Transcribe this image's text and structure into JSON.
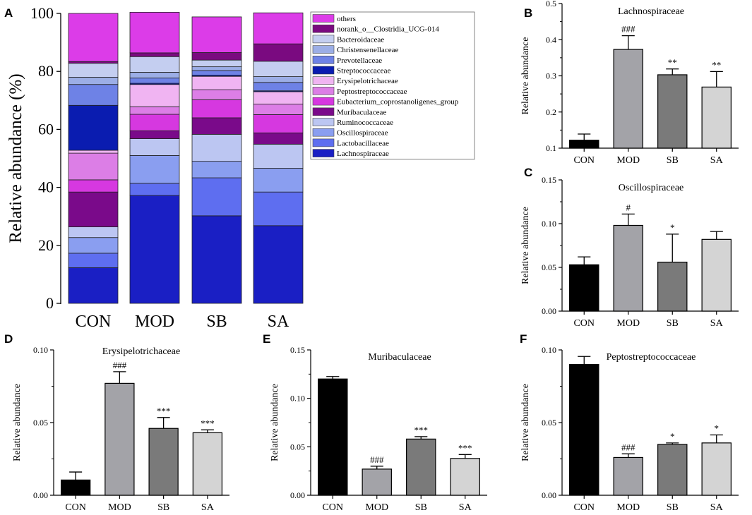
{
  "figure": {
    "panel_labels": [
      "A",
      "B",
      "C",
      "D",
      "E",
      "F"
    ]
  },
  "chart_data": [
    {
      "panel": "A",
      "type": "stacked-bar",
      "title": "",
      "xlabel": "",
      "ylabel": "Relative abundance (%)",
      "ylim": [
        0,
        100
      ],
      "yticks": [
        0,
        20,
        40,
        60,
        80,
        100
      ],
      "categories": [
        "CON",
        "MOD",
        "SB",
        "SA"
      ],
      "legend_position": "right",
      "series": [
        {
          "name": "Lachnospiraceae",
          "color": "#1a1fc4",
          "values": [
            12.3,
            37.2,
            30.2,
            26.8
          ]
        },
        {
          "name": "Lactobacillaceae",
          "color": "#5e6ef0",
          "values": [
            5.0,
            4.2,
            13.1,
            11.6
          ]
        },
        {
          "name": "Oscillospiraceae",
          "color": "#8a9ef0",
          "values": [
            5.4,
            9.6,
            5.7,
            8.2
          ]
        },
        {
          "name": "Ruminococcaceae",
          "color": "#bcc6f2",
          "values": [
            3.7,
            5.8,
            9.3,
            8.3
          ]
        },
        {
          "name": "Muribaculaceae",
          "color": "#7a0a8a",
          "values": [
            12.0,
            2.7,
            5.7,
            3.9
          ]
        },
        {
          "name": "Eubacterium_coprostanoligenes_group",
          "color": "#d638e0",
          "values": [
            4.2,
            5.7,
            6.2,
            6.3
          ]
        },
        {
          "name": "Peptostreptococcaceae",
          "color": "#dc7ee6",
          "values": [
            9.2,
            2.6,
            3.5,
            3.6
          ]
        },
        {
          "name": "Erysipelotrichaceae",
          "color": "#f0b4f2",
          "values": [
            1.0,
            7.7,
            4.6,
            4.3
          ]
        },
        {
          "name": "Streptococcaceae",
          "color": "#0a1cb0",
          "values": [
            15.5,
            0.4,
            0.4,
            0.3
          ]
        },
        {
          "name": "Prevotellaceae",
          "color": "#6e82e6",
          "values": [
            7.2,
            1.8,
            1.6,
            2.9
          ]
        },
        {
          "name": "Christensenellaceae",
          "color": "#9caee6",
          "values": [
            2.5,
            2.0,
            1.3,
            2.0
          ]
        },
        {
          "name": "Bacteroidaceae",
          "color": "#c4cef0",
          "values": [
            4.8,
            5.4,
            2.3,
            5.3
          ]
        },
        {
          "name": "norank_o__Clostridia_UCG-014",
          "color": "#7a0a80",
          "values": [
            0.6,
            1.3,
            2.6,
            6.0
          ]
        },
        {
          "name": "others",
          "color": "#dc3ce8",
          "values": [
            16.6,
            14.0,
            12.3,
            10.7
          ]
        }
      ]
    },
    {
      "panel": "B",
      "type": "bar",
      "title": "Lachnospiraceae",
      "xlabel": "",
      "ylabel": "Relative abundance",
      "categories": [
        "CON",
        "MOD",
        "SB",
        "SA"
      ],
      "values": [
        0.122,
        0.373,
        0.303,
        0.269
      ],
      "errors": [
        0.017,
        0.038,
        0.016,
        0.043
      ],
      "annotations": [
        "",
        "###",
        "**",
        "**"
      ],
      "ylim": [
        0.1,
        0.5
      ],
      "yticks": [
        "0.1",
        "0.2",
        "0.3",
        "0.4",
        "0.5"
      ]
    },
    {
      "panel": "C",
      "type": "bar",
      "title": "Oscillospiraceae",
      "xlabel": "",
      "ylabel": "Relative abundance",
      "categories": [
        "CON",
        "MOD",
        "SB",
        "SA"
      ],
      "values": [
        0.053,
        0.098,
        0.056,
        0.082
      ],
      "errors": [
        0.009,
        0.013,
        0.032,
        0.009
      ],
      "annotations": [
        "",
        "#",
        "*",
        ""
      ],
      "ylim": [
        0,
        0.15
      ],
      "yticks": [
        "0.00",
        "0.05",
        "0.10",
        "0.15"
      ]
    },
    {
      "panel": "D",
      "type": "bar",
      "title": "Erysipelotrichaceae",
      "xlabel": "",
      "ylabel": "Relative abundance",
      "categories": [
        "CON",
        "MOD",
        "SB",
        "SA"
      ],
      "values": [
        0.0105,
        0.077,
        0.046,
        0.043
      ],
      "errors": [
        0.0055,
        0.008,
        0.0075,
        0.002
      ],
      "annotations": [
        "",
        "###",
        "***",
        "***"
      ],
      "ylim": [
        0,
        0.1
      ],
      "yticks": [
        "0.00",
        "0.05",
        "0.10"
      ]
    },
    {
      "panel": "E",
      "type": "bar",
      "title": "Muribaculaceae",
      "xlabel": "",
      "ylabel": "Relative abundance",
      "categories": [
        "CON",
        "MOD",
        "SB",
        "SA"
      ],
      "values": [
        0.12,
        0.027,
        0.058,
        0.038
      ],
      "errors": [
        0.0025,
        0.003,
        0.0025,
        0.004
      ],
      "annotations": [
        "",
        "###",
        "***",
        "***"
      ],
      "ylim": [
        0,
        0.15
      ],
      "yticks": [
        "0.00",
        "0.05",
        "0.10",
        "0.15"
      ]
    },
    {
      "panel": "F",
      "type": "bar",
      "title": "Peptostreptococcaceae",
      "xlabel": "",
      "ylabel": "Relative abundance",
      "categories": [
        "CON",
        "MOD",
        "SB",
        "SA"
      ],
      "values": [
        0.09,
        0.026,
        0.035,
        0.036
      ],
      "errors": [
        0.0055,
        0.0025,
        0.001,
        0.0055
      ],
      "annotations": [
        "",
        "###",
        "*",
        "*"
      ],
      "ylim": [
        0,
        0.1
      ],
      "yticks": [
        "0.00",
        "0.05",
        "0.10"
      ]
    }
  ],
  "bar_colors": [
    "#000000",
    "#a3a3a8",
    "#7a7a7a",
    "#d4d4d4"
  ]
}
